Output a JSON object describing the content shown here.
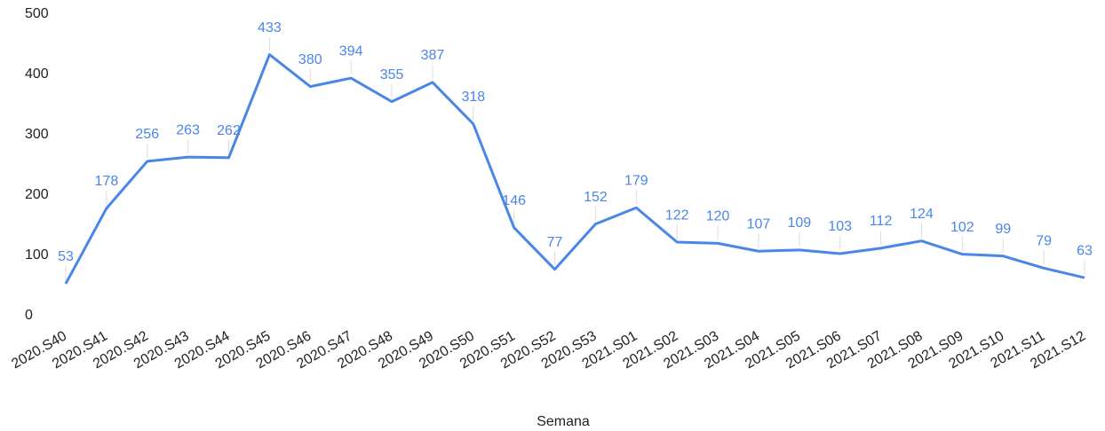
{
  "chart_data": {
    "type": "line",
    "x_label": "Semana",
    "categories": [
      "2020.S40",
      "2020.S41",
      "2020.S42",
      "2020.S43",
      "2020.S44",
      "2020.S45",
      "2020.S46",
      "2020.S47",
      "2020.S48",
      "2020.S49",
      "2020.S50",
      "2020.S51",
      "2020.S52",
      "2020.S53",
      "2021.S01",
      "2021.S02",
      "2021.S03",
      "2021.S04",
      "2021.S05",
      "2021.S06",
      "2021.S07",
      "2021.S08",
      "2021.S09",
      "2021.S10",
      "2021.S11",
      "2021.S12"
    ],
    "values": [
      53,
      178,
      256,
      263,
      262,
      433,
      380,
      394,
      355,
      387,
      318,
      146,
      77,
      152,
      179,
      122,
      120,
      107,
      109,
      103,
      112,
      124,
      102,
      99,
      79,
      63
    ],
    "color": "#4a86e8",
    "ylim": [
      0,
      500
    ],
    "yticks": [
      0,
      100,
      200,
      300,
      400,
      500
    ],
    "grid": false
  }
}
